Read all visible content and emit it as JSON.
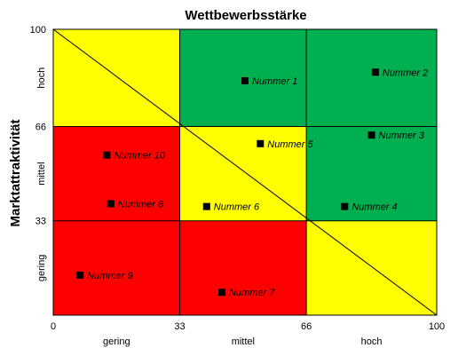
{
  "chart_data": {
    "type": "scatter",
    "title": "Wettbewerbsstärke",
    "xlabel": "",
    "ylabel": "Marktattraktivität",
    "xlim": [
      0,
      100
    ],
    "ylim": [
      0,
      100
    ],
    "x_ticks": [
      0,
      33,
      66,
      100
    ],
    "y_ticks": [
      0,
      33,
      66,
      100
    ],
    "x_tick_labels": [
      "0",
      "33",
      "66",
      "100"
    ],
    "y_tick_labels": [
      "",
      "33",
      "66",
      "100"
    ],
    "x_zone_labels": [
      "gering",
      "mittel",
      "hoch"
    ],
    "y_zone_labels": [
      "gering",
      "mittel",
      "hoch"
    ],
    "zones": [
      {
        "col": 0,
        "row": 0,
        "color": "#ff0000"
      },
      {
        "col": 1,
        "row": 0,
        "color": "#ff0000"
      },
      {
        "col": 2,
        "row": 0,
        "color": "#ffff00"
      },
      {
        "col": 0,
        "row": 1,
        "color": "#ff0000"
      },
      {
        "col": 1,
        "row": 1,
        "color": "#ffff00"
      },
      {
        "col": 2,
        "row": 1,
        "color": "#00b050"
      },
      {
        "col": 0,
        "row": 2,
        "color": "#ffff00"
      },
      {
        "col": 1,
        "row": 2,
        "color": "#00b050"
      },
      {
        "col": 2,
        "row": 2,
        "color": "#00b050"
      }
    ],
    "diagonal": true,
    "points": [
      {
        "label": "Nummer 1",
        "x": 50,
        "y": 82
      },
      {
        "label": "Nummer 2",
        "x": 84,
        "y": 85
      },
      {
        "label": "Nummer 3",
        "x": 83,
        "y": 63
      },
      {
        "label": "Nummer 4",
        "x": 76,
        "y": 38
      },
      {
        "label": "Nummer 5",
        "x": 54,
        "y": 60
      },
      {
        "label": "Nummer 6",
        "x": 40,
        "y": 38
      },
      {
        "label": "Nummer 7",
        "x": 44,
        "y": 8
      },
      {
        "label": "Nummer 8",
        "x": 15,
        "y": 39
      },
      {
        "label": "Nummer 9",
        "x": 7,
        "y": 14
      },
      {
        "label": "Nummer 10",
        "x": 14,
        "y": 56
      }
    ]
  }
}
